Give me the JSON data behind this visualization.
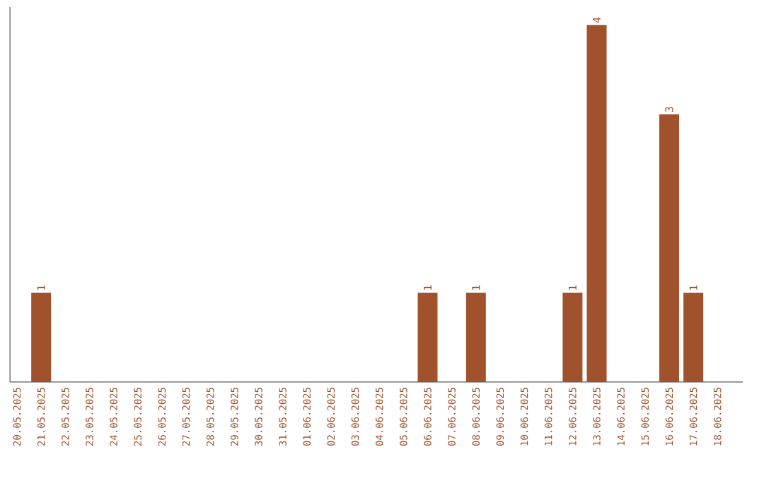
{
  "chart_data": {
    "type": "bar",
    "categories": [
      "20.05.2025",
      "21.05.2025",
      "22.05.2025",
      "23.05.2025",
      "24.05.2025",
      "25.05.2025",
      "26.05.2025",
      "27.05.2025",
      "28.05.2025",
      "29.05.2025",
      "30.05.2025",
      "31.05.2025",
      "01.06.2025",
      "02.06.2025",
      "03.06.2025",
      "04.06.2025",
      "05.06.2025",
      "06.06.2025",
      "07.06.2025",
      "08.06.2025",
      "09.06.2025",
      "10.06.2025",
      "11.06.2025",
      "12.06.2025",
      "13.06.2025",
      "14.06.2025",
      "15.06.2025",
      "16.06.2025",
      "17.06.2025",
      "18.06.2025"
    ],
    "values": [
      0,
      1,
      0,
      0,
      0,
      0,
      0,
      0,
      0,
      0,
      0,
      0,
      0,
      0,
      0,
      0,
      0,
      1,
      0,
      1,
      0,
      0,
      0,
      1,
      4,
      0,
      0,
      3,
      1,
      0
    ],
    "value_labels": [
      null,
      "1",
      null,
      null,
      null,
      null,
      null,
      null,
      null,
      null,
      null,
      null,
      null,
      null,
      null,
      null,
      null,
      "1",
      null,
      "1",
      null,
      null,
      null,
      "1",
      "4",
      null,
      null,
      "3",
      "1",
      null
    ],
    "color": "#a0522d",
    "ylim": [
      0,
      4.2
    ],
    "tick_labels": "x",
    "grid": false
  }
}
